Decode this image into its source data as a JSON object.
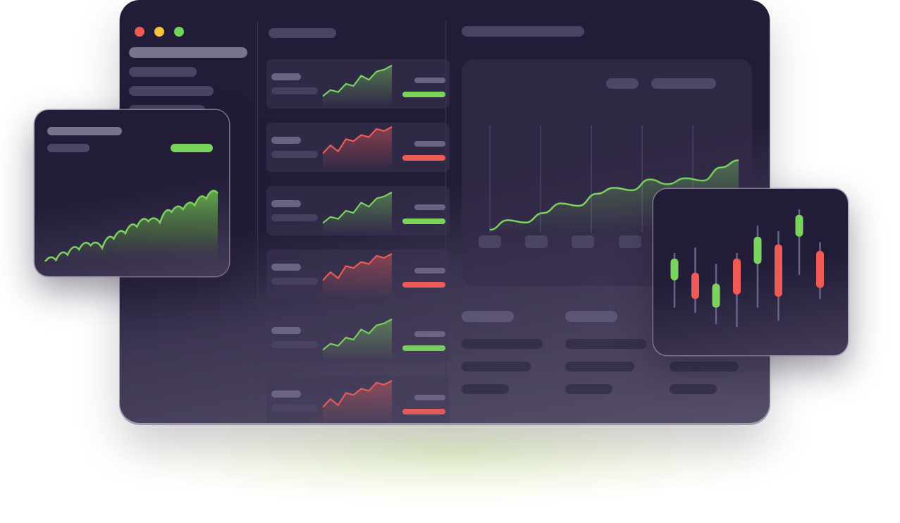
{
  "window": {
    "controls": [
      "close-icon",
      "minimize-icon",
      "zoom-icon"
    ],
    "control_colors": {
      "close": "#ee5a52",
      "minimize": "#f2c33b",
      "zoom": "#6fd45a"
    }
  },
  "colors": {
    "up": "#7ad35d",
    "down": "#f05a55",
    "placeholder": "#5a5372",
    "placeholder_light": "#7a7390",
    "background": "#221c38"
  },
  "watchlist": {
    "rows": [
      {
        "trend": "up"
      },
      {
        "trend": "down"
      },
      {
        "trend": "up"
      },
      {
        "trend": "down"
      },
      {
        "trend": "up"
      },
      {
        "trend": "down"
      }
    ]
  },
  "chart_data": [
    {
      "type": "line",
      "series": [
        {
          "values": [
            0.2,
            0.28,
            0.26,
            0.34,
            0.42,
            0.4,
            0.5,
            0.55,
            0.53,
            0.62,
            0.58,
            0.63,
            0.61,
            0.72,
            0.78
          ]
        }
      ]
    },
    {
      "type": "area",
      "series": [
        {
          "values": [
            0.2,
            0.22,
            0.26,
            0.3,
            0.33,
            0.31,
            0.38,
            0.42,
            0.47,
            0.51,
            0.5,
            0.58,
            0.6,
            0.63,
            0.68,
            0.72
          ]
        }
      ]
    },
    {
      "type": "candlestick",
      "candles": [
        {
          "open": 0.55,
          "close": 0.75,
          "high": 0.8,
          "low": 0.3,
          "trend": "up"
        },
        {
          "open": 0.62,
          "close": 0.38,
          "high": 0.85,
          "low": 0.25,
          "trend": "down"
        },
        {
          "open": 0.3,
          "close": 0.52,
          "high": 0.7,
          "low": 0.15,
          "trend": "up"
        },
        {
          "open": 0.75,
          "close": 0.42,
          "high": 0.8,
          "low": 0.12,
          "trend": "down"
        },
        {
          "open": 0.7,
          "close": 0.95,
          "high": 1.05,
          "low": 0.3,
          "trend": "up"
        },
        {
          "open": 0.88,
          "close": 0.4,
          "high": 1.0,
          "low": 0.18,
          "trend": "down"
        },
        {
          "open": 0.95,
          "close": 1.15,
          "high": 1.2,
          "low": 0.6,
          "trend": "up"
        },
        {
          "open": 0.82,
          "close": 0.48,
          "high": 0.9,
          "low": 0.38,
          "trend": "down"
        }
      ]
    }
  ]
}
